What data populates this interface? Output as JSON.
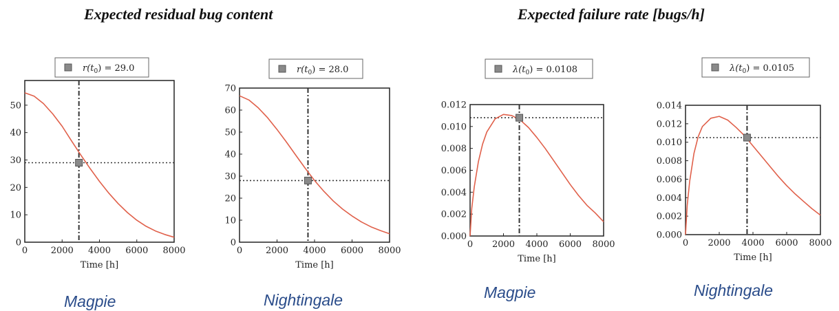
{
  "headings": {
    "left": "Expected residual bug content",
    "right": "Expected failure rate [bugs/h]"
  },
  "captions": [
    "Magpie",
    "Nightingale",
    "Magpie",
    "Nightingale"
  ],
  "colors": {
    "curve": "#e0604a",
    "marker": "#8a8a8a",
    "reference": "#333333",
    "frame": "#222222"
  },
  "chart_data": [
    {
      "type": "line",
      "xlabel": "Time [h]",
      "ylabel": "",
      "xlim": [
        0,
        8000
      ],
      "ylim": [
        0,
        59
      ],
      "xticks": [
        0,
        2000,
        4000,
        6000,
        8000
      ],
      "yticks": [
        0,
        10,
        20,
        30,
        40,
        50
      ],
      "ytick_labels": [
        "0",
        "10",
        "20",
        "30",
        "40",
        "50"
      ],
      "legend": {
        "symbol": "r(t",
        "subscript": "0",
        "value": "29.0"
      },
      "marker": {
        "x": 2900,
        "y": 29.0
      },
      "x": [
        0,
        500,
        1000,
        1500,
        2000,
        2500,
        3000,
        3500,
        4000,
        4500,
        5000,
        5500,
        6000,
        6500,
        7000,
        7500,
        8000
      ],
      "values": [
        54.5,
        53.3,
        50.6,
        46.8,
        42.3,
        37.0,
        31.8,
        26.9,
        22.2,
        17.9,
        14.1,
        10.8,
        8.0,
        5.8,
        4.1,
        2.8,
        1.8
      ]
    },
    {
      "type": "line",
      "xlabel": "Time [h]",
      "ylabel": "",
      "xlim": [
        0,
        8000
      ],
      "ylim": [
        0,
        70
      ],
      "xticks": [
        0,
        2000,
        4000,
        6000,
        8000
      ],
      "yticks": [
        0,
        10,
        20,
        30,
        40,
        50,
        60,
        70
      ],
      "ytick_labels": [
        "0",
        "10",
        "20",
        "30",
        "40",
        "50",
        "60",
        "70"
      ],
      "legend": {
        "symbol": "r(t",
        "subscript": "0",
        "value": "28.0"
      },
      "marker": {
        "x": 3650,
        "y": 28.0
      },
      "x": [
        0,
        500,
        1000,
        1500,
        2000,
        2500,
        3000,
        3500,
        4000,
        4500,
        5000,
        5500,
        6000,
        6500,
        7000,
        7500,
        8000
      ],
      "values": [
        66.5,
        64.6,
        61.0,
        56.5,
        51.2,
        45.5,
        39.5,
        33.6,
        28.0,
        23.1,
        18.7,
        15.0,
        11.9,
        9.2,
        7.0,
        5.3,
        3.8
      ]
    },
    {
      "type": "line",
      "xlabel": "Time [h]",
      "ylabel": "",
      "xlim": [
        0,
        8000
      ],
      "ylim": [
        0,
        0.012
      ],
      "xticks": [
        0,
        2000,
        4000,
        6000,
        8000
      ],
      "yticks": [
        0,
        0.002,
        0.004,
        0.006,
        0.008,
        0.01,
        0.012
      ],
      "ytick_labels": [
        "0.000",
        "0.002",
        "0.004",
        "0.006",
        "0.008",
        "0.010",
        "0.012"
      ],
      "legend": {
        "symbol": "λ(t",
        "subscript": "0",
        "value": "0.0108"
      },
      "marker": {
        "x": 2950,
        "y": 0.0108
      },
      "x": [
        0,
        100,
        250,
        500,
        750,
        1000,
        1500,
        2000,
        2500,
        3000,
        3500,
        4000,
        4500,
        5000,
        5500,
        6000,
        6500,
        7000,
        7500,
        8000
      ],
      "values": [
        0.0,
        0.0025,
        0.0045,
        0.0068,
        0.0084,
        0.0095,
        0.0107,
        0.0111,
        0.011,
        0.0106,
        0.0099,
        0.009,
        0.008,
        0.0069,
        0.0058,
        0.0047,
        0.0037,
        0.0028,
        0.0021,
        0.0013
      ]
    },
    {
      "type": "line",
      "xlabel": "Time [h]",
      "ylabel": "",
      "xlim": [
        0,
        8000
      ],
      "ylim": [
        0,
        0.014
      ],
      "xticks": [
        0,
        2000,
        4000,
        6000,
        8000
      ],
      "yticks": [
        0,
        0.002,
        0.004,
        0.006,
        0.008,
        0.01,
        0.012,
        0.014
      ],
      "ytick_labels": [
        "0.000",
        "0.002",
        "0.004",
        "0.006",
        "0.008",
        "0.010",
        "0.012",
        "0.014"
      ],
      "legend": {
        "symbol": "λ(t",
        "subscript": "0",
        "value": "0.0105"
      },
      "marker": {
        "x": 3650,
        "y": 0.0105
      },
      "x": [
        0,
        100,
        250,
        500,
        750,
        1000,
        1500,
        2000,
        2500,
        3000,
        3500,
        4000,
        4500,
        5000,
        5500,
        6000,
        6500,
        7000,
        7500,
        8000
      ],
      "values": [
        0.0,
        0.0032,
        0.0058,
        0.0088,
        0.0106,
        0.0117,
        0.0126,
        0.0128,
        0.0124,
        0.0116,
        0.0107,
        0.0096,
        0.0085,
        0.0074,
        0.0063,
        0.0053,
        0.0044,
        0.0036,
        0.0028,
        0.0021
      ]
    }
  ]
}
